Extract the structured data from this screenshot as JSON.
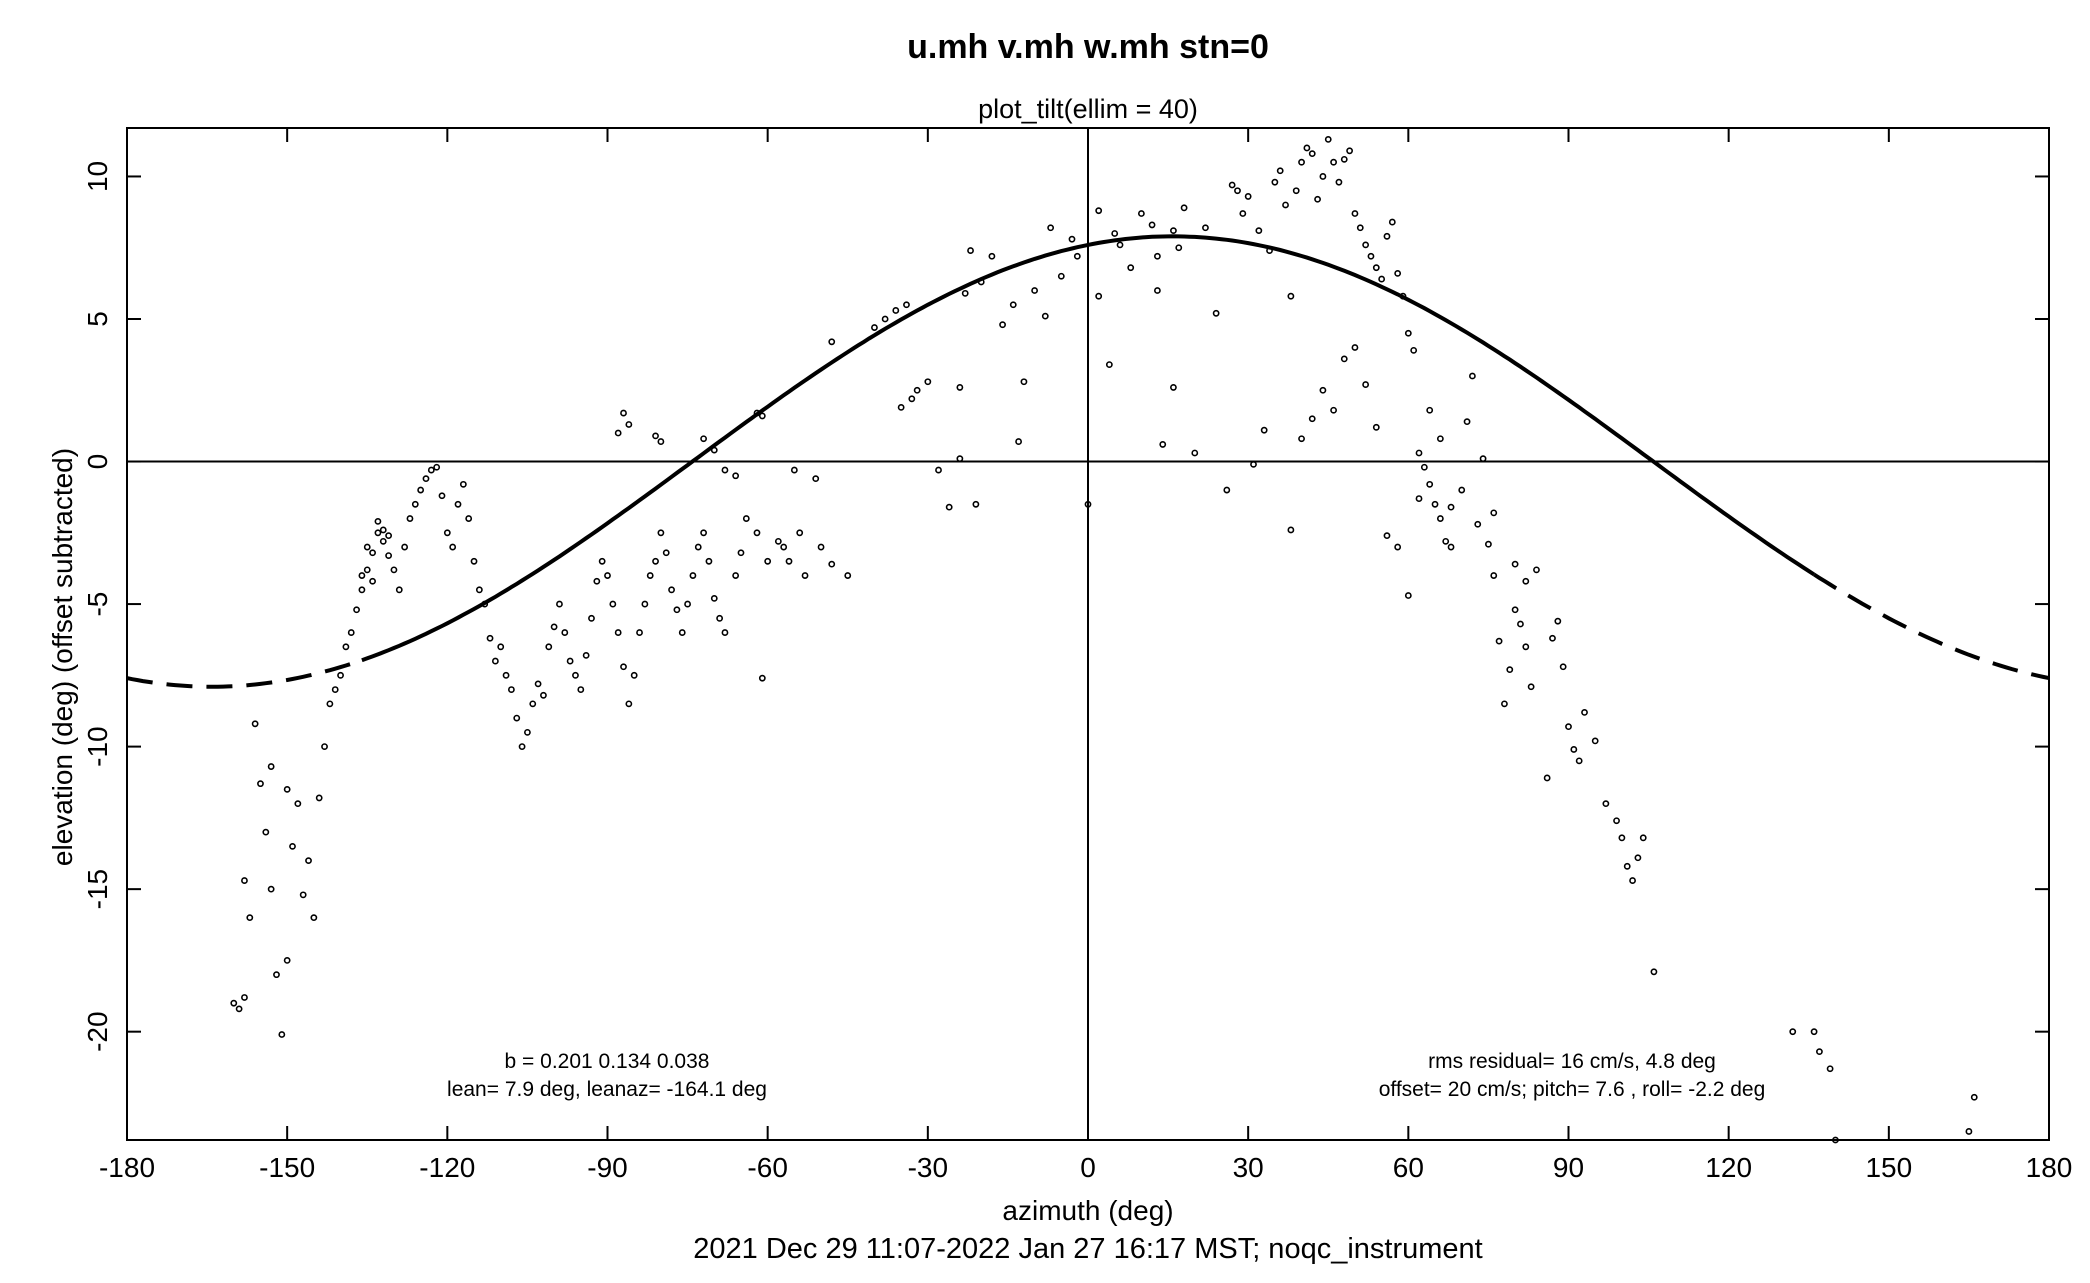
{
  "chart_data": {
    "type": "scatter",
    "title": "u.mh v.mh w.mh stn=0",
    "subtitle": "plot_tilt(ellim = 40)",
    "xlabel": "azimuth (deg)",
    "ylabel": "elevation (deg)  (offset subtracted)",
    "footer": "2021 Dec 29 11:07-2022 Jan 27 16:17 MST; noqc_instrument",
    "xlim": [
      -180,
      180
    ],
    "ylim": [
      -23.8,
      11.7
    ],
    "xticks": [
      -180,
      -150,
      -120,
      -90,
      -60,
      -30,
      0,
      30,
      60,
      90,
      120,
      150,
      180
    ],
    "xtick_labels": [
      "-180",
      "-150",
      "-120",
      "-90",
      "-60",
      "-30",
      "0",
      "30",
      "60",
      "90",
      "120",
      "150",
      "180"
    ],
    "yticks": [
      10,
      5,
      0,
      -5,
      -10,
      -15,
      -20
    ],
    "ytick_labels": [
      "10",
      "5",
      "0",
      "-5",
      "-10",
      "-15",
      "-20"
    ],
    "grid": false,
    "reference_lines": {
      "x": 0,
      "y": 0
    },
    "fit_curve": {
      "description": "sinusoid elevation = 7.9*cos(azimuth - 15.9)",
      "amplitude": 7.9,
      "phase_deg": 15.9,
      "solid_range": [
        -136,
        136
      ],
      "dashed_outside": true
    },
    "annotations": {
      "left_line1": "b = 0.201 0.134 0.038",
      "left_line2": "lean= 7.9 deg, leanaz= -164.1 deg",
      "right_line1": "rms residual= 16 cm/s, 4.8 deg",
      "right_line2": "offset= 20 cm/s; pitch=  7.6 , roll= -2.2 deg"
    },
    "series": [
      {
        "points": [
          [
            -160,
            -19.0
          ],
          [
            -159,
            -19.2
          ],
          [
            -158,
            -18.8
          ],
          [
            -157,
            -16
          ],
          [
            -158,
            -14.7
          ],
          [
            -156,
            -9.2
          ],
          [
            -155,
            -11.3
          ],
          [
            -154,
            -13
          ],
          [
            -153,
            -15
          ],
          [
            -152,
            -18
          ],
          [
            -151,
            -20.1
          ],
          [
            -150,
            -17.5
          ],
          [
            -153,
            -10.7
          ],
          [
            -148,
            -12
          ],
          [
            -149,
            -13.5
          ],
          [
            -147,
            -15.2
          ],
          [
            -146,
            -14
          ],
          [
            -145,
            -16
          ],
          [
            -150,
            -11.5
          ],
          [
            -144,
            -11.8
          ],
          [
            -143,
            -10
          ],
          [
            -142,
            -8.5
          ],
          [
            -141,
            -8
          ],
          [
            -140,
            -7.5
          ],
          [
            -139,
            -6.5
          ],
          [
            -138,
            -6
          ],
          [
            -137,
            -5.2
          ],
          [
            -136,
            -4.5
          ],
          [
            -135,
            -3.8
          ],
          [
            -134,
            -3.2
          ],
          [
            -133,
            -2.5
          ],
          [
            -132,
            -2.8
          ],
          [
            -131,
            -3.3
          ],
          [
            -134,
            -4.2
          ],
          [
            -136,
            -4
          ],
          [
            -135,
            -3
          ],
          [
            -133,
            -2.1
          ],
          [
            -132,
            -2.4
          ],
          [
            -131,
            -2.6
          ],
          [
            -130,
            -3.8
          ],
          [
            -129,
            -4.5
          ],
          [
            -128,
            -3
          ],
          [
            -127,
            -2
          ],
          [
            -126,
            -1.5
          ],
          [
            -125,
            -1
          ],
          [
            -124,
            -0.6
          ],
          [
            -123,
            -0.3
          ],
          [
            -122,
            -0.2
          ],
          [
            -121,
            -1.2
          ],
          [
            -120,
            -2.5
          ],
          [
            -119,
            -3
          ],
          [
            -118,
            -1.5
          ],
          [
            -117,
            -0.8
          ],
          [
            -116,
            -2
          ],
          [
            -115,
            -3.5
          ],
          [
            -114,
            -4.5
          ],
          [
            -113,
            -5
          ],
          [
            -112,
            -6.2
          ],
          [
            -111,
            -7
          ],
          [
            -110,
            -6.5
          ],
          [
            -109,
            -7.5
          ],
          [
            -108,
            -8
          ],
          [
            -107,
            -9
          ],
          [
            -106,
            -10
          ],
          [
            -105,
            -9.5
          ],
          [
            -104,
            -8.5
          ],
          [
            -103,
            -7.8
          ],
          [
            -102,
            -8.2
          ],
          [
            -101,
            -6.5
          ],
          [
            -100,
            -5.8
          ],
          [
            -99,
            -5
          ],
          [
            -98,
            -6
          ],
          [
            -97,
            -7
          ],
          [
            -96,
            -7.5
          ],
          [
            -95,
            -8
          ],
          [
            -94,
            -6.8
          ],
          [
            -93,
            -5.5
          ],
          [
            -92,
            -4.2
          ],
          [
            -91,
            -3.5
          ],
          [
            -90,
            -4
          ],
          [
            -89,
            -5
          ],
          [
            -88,
            -6
          ],
          [
            -87,
            -7.2
          ],
          [
            -86,
            -8.5
          ],
          [
            -85,
            -7.5
          ],
          [
            -84,
            -6
          ],
          [
            -83,
            -5
          ],
          [
            -82,
            -4
          ],
          [
            -81,
            -3.5
          ],
          [
            -80,
            -2.5
          ],
          [
            -79,
            -3.2
          ],
          [
            -78,
            -4.5
          ],
          [
            -77,
            -5.2
          ],
          [
            -76,
            -6
          ],
          [
            -75,
            -5
          ],
          [
            -74,
            -4
          ],
          [
            -73,
            -3
          ],
          [
            -72,
            -2.5
          ],
          [
            -71,
            -3.5
          ],
          [
            -70,
            -4.8
          ],
          [
            -69,
            -5.5
          ],
          [
            -68,
            -6
          ],
          [
            -66,
            -4
          ],
          [
            -65,
            -3.2
          ],
          [
            -64,
            -2
          ],
          [
            -62,
            -2.5
          ],
          [
            -61,
            -7.6
          ],
          [
            -60,
            -3.5
          ],
          [
            -58,
            -2.8
          ],
          [
            -57,
            -3
          ],
          [
            -56,
            -3.5
          ],
          [
            -54,
            -2.5
          ],
          [
            -53,
            -4
          ],
          [
            -50,
            -3
          ],
          [
            -48,
            -3.6
          ],
          [
            -45,
            -4
          ],
          [
            -88,
            1
          ],
          [
            -87,
            1.7
          ],
          [
            -86,
            1.3
          ],
          [
            -81,
            0.9
          ],
          [
            -80,
            0.7
          ],
          [
            -72,
            0.8
          ],
          [
            -70,
            0.4
          ],
          [
            -68,
            -0.3
          ],
          [
            -66,
            -0.5
          ],
          [
            -62,
            1.7
          ],
          [
            -61,
            1.6
          ],
          [
            -55,
            -0.3
          ],
          [
            -51,
            -0.6
          ],
          [
            -48,
            4.2
          ],
          [
            -40,
            4.7
          ],
          [
            -38,
            5
          ],
          [
            -36,
            5.3
          ],
          [
            -35,
            1.9
          ],
          [
            -34,
            5.5
          ],
          [
            -33,
            2.2
          ],
          [
            -32,
            2.5
          ],
          [
            -30,
            2.8
          ],
          [
            -28,
            -0.3
          ],
          [
            -26,
            -1.6
          ],
          [
            -24,
            2.6
          ],
          [
            -24,
            0.1
          ],
          [
            -23,
            5.9
          ],
          [
            -22,
            7.4
          ],
          [
            -21,
            -1.5
          ],
          [
            -20,
            6.3
          ],
          [
            -18,
            7.2
          ],
          [
            -16,
            4.8
          ],
          [
            -14,
            5.5
          ],
          [
            -13,
            0.7
          ],
          [
            -12,
            2.8
          ],
          [
            -10,
            6
          ],
          [
            -8,
            5.1
          ],
          [
            -7,
            8.2
          ],
          [
            -5,
            6.5
          ],
          [
            -3,
            7.8
          ],
          [
            -2,
            7.2
          ],
          [
            0,
            -1.5
          ],
          [
            2,
            8.8
          ],
          [
            2,
            5.8
          ],
          [
            4,
            3.4
          ],
          [
            5,
            8
          ],
          [
            6,
            7.6
          ],
          [
            8,
            6.8
          ],
          [
            10,
            8.7
          ],
          [
            12,
            8.3
          ],
          [
            13,
            7.2
          ],
          [
            13,
            6
          ],
          [
            14,
            0.6
          ],
          [
            16,
            8.1
          ],
          [
            16,
            2.6
          ],
          [
            17,
            7.5
          ],
          [
            18,
            8.9
          ],
          [
            20,
            0.3
          ],
          [
            22,
            8.2
          ],
          [
            24,
            5.2
          ],
          [
            26,
            -1
          ],
          [
            27,
            9.7
          ],
          [
            28,
            9.5
          ],
          [
            29,
            8.7
          ],
          [
            30,
            9.3
          ],
          [
            31,
            -0.1
          ],
          [
            32,
            8.1
          ],
          [
            33,
            1.1
          ],
          [
            34,
            7.4
          ],
          [
            35,
            9.8
          ],
          [
            36,
            10.2
          ],
          [
            37,
            9
          ],
          [
            38,
            5.8
          ],
          [
            39,
            9.5
          ],
          [
            40,
            10.5
          ],
          [
            41,
            11
          ],
          [
            42,
            10.8
          ],
          [
            43,
            9.2
          ],
          [
            44,
            10
          ],
          [
            45,
            11.3
          ],
          [
            46,
            10.5
          ],
          [
            47,
            9.8
          ],
          [
            48,
            10.6
          ],
          [
            49,
            10.9
          ],
          [
            50,
            8.7
          ],
          [
            51,
            8.2
          ],
          [
            52,
            7.6
          ],
          [
            53,
            7.2
          ],
          [
            54,
            6.8
          ],
          [
            55,
            6.4
          ],
          [
            56,
            7.9
          ],
          [
            57,
            8.4
          ],
          [
            58,
            6.6
          ],
          [
            59,
            5.8
          ],
          [
            60,
            4.5
          ],
          [
            61,
            3.9
          ],
          [
            62,
            0.3
          ],
          [
            63,
            -0.2
          ],
          [
            64,
            -0.8
          ],
          [
            65,
            -1.5
          ],
          [
            66,
            -2
          ],
          [
            67,
            -2.8
          ],
          [
            68,
            -3
          ],
          [
            70,
            -1
          ],
          [
            71,
            1.4
          ],
          [
            72,
            3
          ],
          [
            73,
            -2.2
          ],
          [
            75,
            -2.9
          ],
          [
            76,
            -4
          ],
          [
            77,
            -6.3
          ],
          [
            78,
            -8.5
          ],
          [
            79,
            -7.3
          ],
          [
            80,
            -5.2
          ],
          [
            81,
            -5.7
          ],
          [
            82,
            -6.5
          ],
          [
            83,
            -7.9
          ],
          [
            84,
            -3.8
          ],
          [
            86,
            -11.1
          ],
          [
            87,
            -6.2
          ],
          [
            88,
            -5.6
          ],
          [
            89,
            -7.2
          ],
          [
            90,
            -9.3
          ],
          [
            91,
            -10.1
          ],
          [
            92,
            -10.5
          ],
          [
            93,
            -8.8
          ],
          [
            95,
            -9.8
          ],
          [
            97,
            -12
          ],
          [
            99,
            -12.6
          ],
          [
            100,
            -13.2
          ],
          [
            101,
            -14.2
          ],
          [
            102,
            -14.7
          ],
          [
            103,
            -13.9
          ],
          [
            104,
            -13.2
          ],
          [
            106,
            -17.9
          ],
          [
            132,
            -20
          ],
          [
            136,
            -20
          ],
          [
            137,
            -20.7
          ],
          [
            139,
            -21.3
          ],
          [
            140,
            -23.8
          ],
          [
            165,
            -23.5
          ],
          [
            166,
            -22.3
          ],
          [
            38,
            -2.4
          ],
          [
            40,
            0.8
          ],
          [
            42,
            1.5
          ],
          [
            44,
            2.5
          ],
          [
            46,
            1.8
          ],
          [
            48,
            3.6
          ],
          [
            50,
            4
          ],
          [
            52,
            2.7
          ],
          [
            54,
            1.2
          ],
          [
            56,
            -2.6
          ],
          [
            58,
            -3
          ],
          [
            60,
            -4.7
          ],
          [
            62,
            -1.3
          ],
          [
            64,
            1.8
          ],
          [
            66,
            0.8
          ],
          [
            68,
            -1.6
          ],
          [
            74,
            0.1
          ],
          [
            76,
            -1.8
          ],
          [
            80,
            -3.6
          ],
          [
            82,
            -4.2
          ]
        ]
      }
    ]
  }
}
